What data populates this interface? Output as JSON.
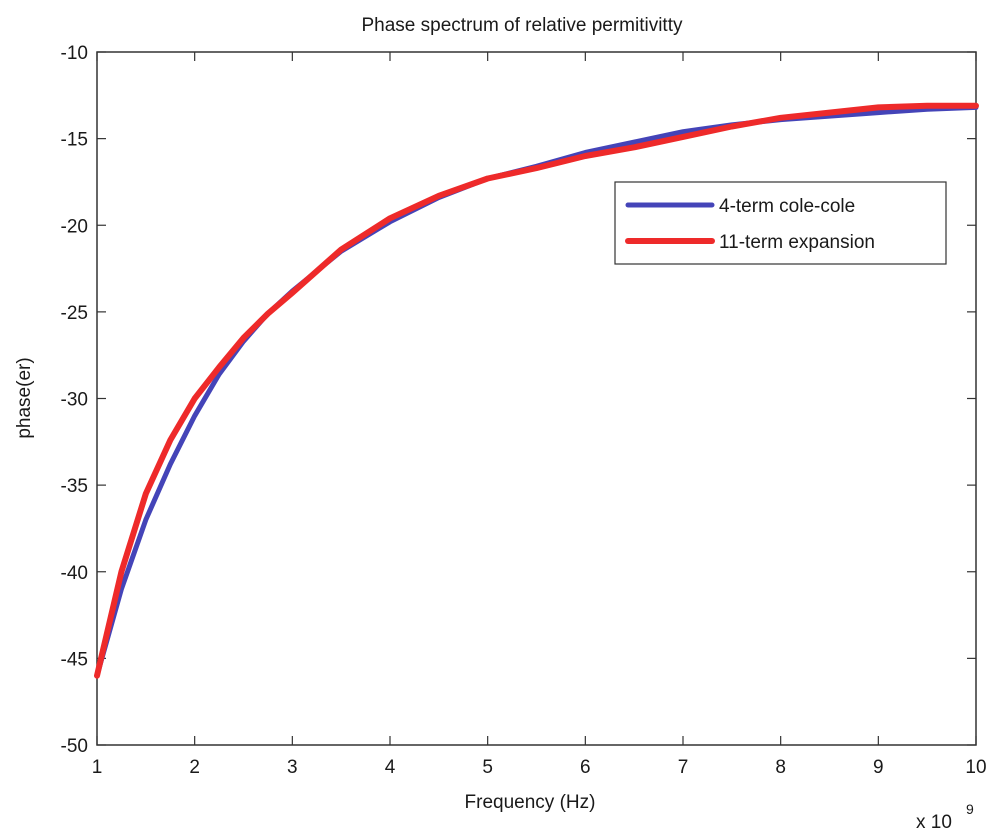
{
  "chart_data": {
    "type": "line",
    "title": "Phase spectrum of relative permitivitty",
    "xlabel": "Frequency (Hz)",
    "ylabel": "phase(er)",
    "x_multiplier_label": "x 10",
    "x_multiplier_exponent": "9",
    "xlim": [
      1,
      10
    ],
    "ylim": [
      -50,
      -10
    ],
    "x_ticks": [
      1,
      2,
      3,
      4,
      5,
      6,
      7,
      8,
      9,
      10
    ],
    "x_tick_labels": [
      "1",
      "2",
      "3",
      "4",
      "5",
      "6",
      "7",
      "8",
      "9",
      "10"
    ],
    "y_ticks": [
      -50,
      -45,
      -40,
      -35,
      -30,
      -25,
      -20,
      -15,
      -10
    ],
    "y_tick_labels": [
      "-50",
      "-45",
      "-40",
      "-35",
      "-30",
      "-25",
      "-20",
      "-15",
      "-10"
    ],
    "grid": false,
    "legend_position": "top-right",
    "series": [
      {
        "name": "4-term cole-cole",
        "color": "#4444b8",
        "x": [
          1,
          1.25,
          1.5,
          1.75,
          2,
          2.25,
          2.5,
          2.75,
          3,
          3.5,
          4,
          4.5,
          5,
          5.5,
          6,
          6.5,
          7,
          7.5,
          8,
          8.5,
          9,
          9.5,
          10
        ],
        "y": [
          -46,
          -41,
          -37,
          -33.8,
          -31,
          -28.6,
          -26.7,
          -25.1,
          -23.8,
          -21.5,
          -19.8,
          -18.4,
          -17.3,
          -16.6,
          -15.8,
          -15.2,
          -14.6,
          -14.2,
          -13.9,
          -13.7,
          -13.5,
          -13.3,
          -13.2
        ]
      },
      {
        "name": "11-term expansion",
        "color": "#ee2a2a",
        "x": [
          1,
          1.25,
          1.5,
          1.75,
          2,
          2.25,
          2.5,
          2.75,
          3,
          3.5,
          4,
          4.5,
          5,
          5.5,
          6,
          6.5,
          7,
          7.5,
          8,
          8.5,
          9,
          9.5,
          10
        ],
        "y": [
          -46,
          -40,
          -35.5,
          -32.4,
          -30,
          -28.2,
          -26.5,
          -25.1,
          -23.9,
          -21.4,
          -19.6,
          -18.3,
          -17.3,
          -16.7,
          -16,
          -15.5,
          -14.9,
          -14.3,
          -13.8,
          -13.5,
          -13.2,
          -13.1,
          -13.1
        ]
      }
    ]
  }
}
